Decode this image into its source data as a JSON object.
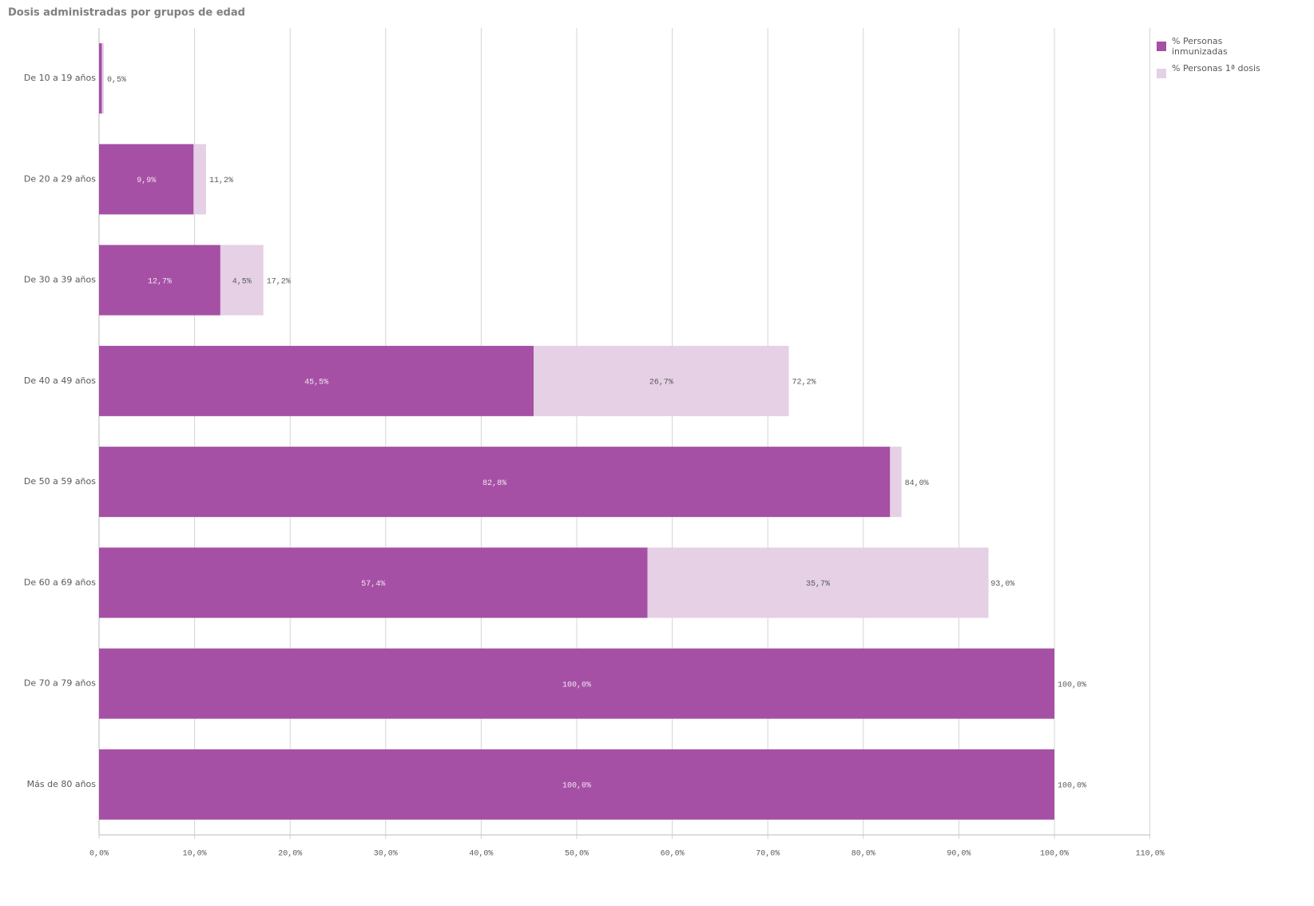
{
  "chart_data": {
    "type": "stacked-bar-horizontal",
    "title": "Dosis administradas por grupos de edad",
    "categories": [
      "De 10 a 19 años",
      "De 20 a 29 años",
      "De 30 a 39 años",
      "De 40 a 49 años",
      "De 50 a 59 años",
      "De 60 a 69 años",
      "De 70 a 79 años",
      "Más de 80 años"
    ],
    "series": [
      {
        "name": "% Personas inmunizadas",
        "color": "#a550a5",
        "values": [
          0.3,
          9.9,
          12.7,
          45.5,
          82.8,
          57.4,
          100,
          100
        ],
        "value_labels": [
          null,
          "9,9%",
          "12,7%",
          "45,5%",
          "82,8%",
          "57,4%",
          "100,0%",
          "100,0%"
        ]
      },
      {
        "name": "% Personas 1ª dosis",
        "color": "#e5d0e5",
        "values": [
          0.2,
          1.3,
          4.5,
          26.7,
          1.2,
          35.7,
          0,
          0
        ],
        "value_labels": [
          null,
          null,
          "4,5%",
          "26,7%",
          null,
          "35,7%",
          null,
          null
        ]
      }
    ],
    "totals": [
      0.5,
      11.2,
      17.2,
      72.2,
      84.0,
      93.0,
      100,
      100
    ],
    "total_labels": [
      "0,5%",
      "11,2%",
      "17,2%",
      "72,2%",
      "84,0%",
      "93,0%",
      "100,0%",
      "100,0%"
    ],
    "xlim": [
      0,
      110
    ],
    "xticks": [
      {
        "value": 0,
        "label": "0,0%"
      },
      {
        "value": 10,
        "label": "10,0%"
      },
      {
        "value": 20,
        "label": "20,0%"
      },
      {
        "value": 30,
        "label": "30,0%"
      },
      {
        "value": 40,
        "label": "40,0%"
      },
      {
        "value": 50,
        "label": "50,0%"
      },
      {
        "value": 60,
        "label": "60,0%"
      },
      {
        "value": 70,
        "label": "70,0%"
      },
      {
        "value": 80,
        "label": "80,0%"
      },
      {
        "value": 90,
        "label": "90,0%"
      },
      {
        "value": 100,
        "label": "100,0%"
      },
      {
        "value": 110,
        "label": "110,0%"
      }
    ],
    "grid": true,
    "legend": "top-right"
  }
}
